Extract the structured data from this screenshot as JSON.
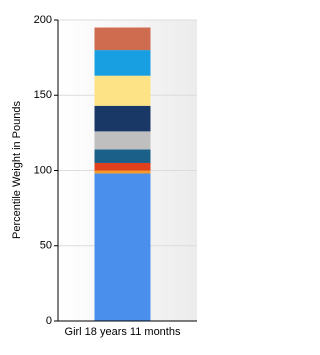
{
  "chart_data": {
    "type": "stacked-bar",
    "y_label": "Percentile Weight in Pounds",
    "categories": [
      "Girl 18 years 11 months"
    ],
    "series": [
      {
        "color": "#4a8fec",
        "values": [
          98
        ]
      },
      {
        "color": "#f29b2c",
        "values": [
          2
        ]
      },
      {
        "color": "#e0401c",
        "values": [
          5
        ]
      },
      {
        "color": "#1b6088",
        "values": [
          9
        ]
      },
      {
        "color": "#bfbfbf",
        "values": [
          12
        ]
      },
      {
        "color": "#1a3866",
        "values": [
          17
        ]
      },
      {
        "color": "#fde385",
        "values": [
          20
        ]
      },
      {
        "color": "#179fe2",
        "values": [
          17
        ]
      },
      {
        "color": "#cf6b4e",
        "values": [
          15
        ]
      }
    ],
    "ylim": [
      0,
      200
    ],
    "yticks": [
      0,
      50,
      100,
      150,
      200
    ],
    "grid": true
  }
}
